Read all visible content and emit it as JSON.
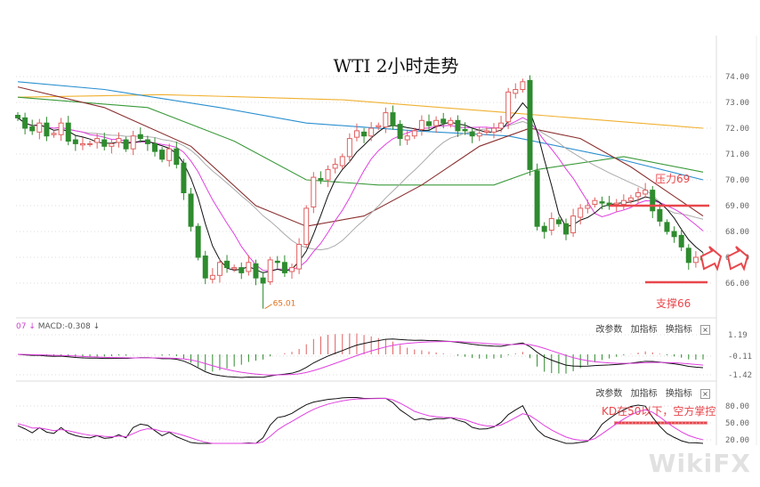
{
  "chart_data": {
    "type": "candlestick",
    "title": "WTI 2小时走势",
    "price_axis": {
      "ticks": [
        "74.00",
        "73.00",
        "72.00",
        "71.00",
        "70.00",
        "69.00",
        "68.00",
        "67.00",
        "66.00"
      ],
      "ylim": [
        64.8,
        74.4
      ]
    },
    "closes": [
      72.4,
      72.0,
      71.9,
      72.2,
      71.7,
      71.8,
      72.2,
      71.5,
      71.4,
      71.4,
      71.4,
      71.6,
      71.3,
      71.4,
      71.6,
      71.2,
      71.7,
      71.6,
      71.4,
      71.1,
      70.8,
      71.2,
      70.6,
      69.5,
      68.2,
      67.0,
      66.2,
      66.3,
      66.8,
      66.6,
      66.6,
      66.4,
      66.8,
      66.2,
      66.0,
      66.9,
      66.8,
      66.4,
      66.6,
      67.5,
      68.9,
      70.1,
      70.0,
      70.4,
      70.6,
      70.9,
      71.6,
      71.9,
      71.7,
      72.0,
      72.1,
      72.6,
      72.1,
      71.6,
      71.7,
      71.9,
      72.3,
      72.1,
      72.3,
      72.2,
      72.3,
      71.9,
      71.9,
      71.7,
      71.8,
      71.9,
      72.0,
      72.2,
      73.4,
      73.5,
      73.8,
      70.4,
      68.2,
      68.0,
      68.5,
      68.3,
      67.9,
      68.6,
      68.9,
      69.0,
      69.2,
      69.1,
      69.0,
      69.1,
      69.2,
      69.3,
      69.5,
      69.6,
      68.8,
      68.4,
      68.0,
      67.8,
      67.4,
      66.8,
      67.0,
      66.9
    ],
    "low_label": {
      "value": "65.01",
      "price": 65.01,
      "index": 34
    },
    "short_ma": [
      {
        "period": 5,
        "color": "#111111"
      },
      {
        "period": 10,
        "color": "#e040e0"
      },
      {
        "period": 20,
        "color": "#aaaaaa"
      }
    ],
    "long_ma": [
      {
        "color": "#f0b030",
        "points": [
          [
            0,
            73.2
          ],
          [
            20,
            73.3
          ],
          [
            45,
            73.1
          ],
          [
            68,
            72.6
          ],
          [
            95,
            72.0
          ]
        ]
      },
      {
        "color": "#2a8fd0",
        "points": [
          [
            0,
            73.8
          ],
          [
            12,
            73.5
          ],
          [
            28,
            72.8
          ],
          [
            40,
            72.2
          ],
          [
            55,
            71.9
          ],
          [
            68,
            71.7
          ],
          [
            82,
            70.9
          ],
          [
            95,
            70.0
          ]
        ]
      },
      {
        "color": "#3a9a3a",
        "points": [
          [
            0,
            73.2
          ],
          [
            18,
            72.8
          ],
          [
            30,
            71.5
          ],
          [
            40,
            70.0
          ],
          [
            50,
            69.8
          ],
          [
            66,
            69.8
          ],
          [
            72,
            70.4
          ],
          [
            84,
            70.9
          ],
          [
            95,
            70.3
          ]
        ]
      },
      {
        "color": "#8b3030",
        "points": [
          [
            0,
            73.6
          ],
          [
            12,
            72.8
          ],
          [
            24,
            71.3
          ],
          [
            33,
            69.0
          ],
          [
            40,
            68.2
          ],
          [
            48,
            68.6
          ],
          [
            56,
            69.8
          ],
          [
            64,
            71.3
          ],
          [
            71,
            72.0
          ],
          [
            78,
            71.6
          ],
          [
            85,
            70.5
          ],
          [
            95,
            68.6
          ]
        ]
      }
    ],
    "macd": {
      "label": "MACD:-0.308",
      "prefix": "07",
      "ticks": [
        "1.19",
        "-0.11",
        "-1.42"
      ]
    },
    "kd": {
      "ticks": [
        "80.00",
        "50.00",
        "20.00"
      ]
    },
    "colors": {
      "up": "#e06060",
      "down": "#2e8b2e",
      "annotation": "#e8474c",
      "grid": "#dddddd"
    }
  },
  "toolbar": {
    "items": [
      "改参数",
      "加指标",
      "换指标"
    ],
    "close": "×"
  },
  "annotations": {
    "resistance": {
      "text": "压力69",
      "price": 69
    },
    "support": {
      "text": "支撑66",
      "price": 66
    },
    "kd_note": {
      "text": "KD在50以下，空方掌控",
      "value": 50
    }
  },
  "watermark": "WikiFX"
}
